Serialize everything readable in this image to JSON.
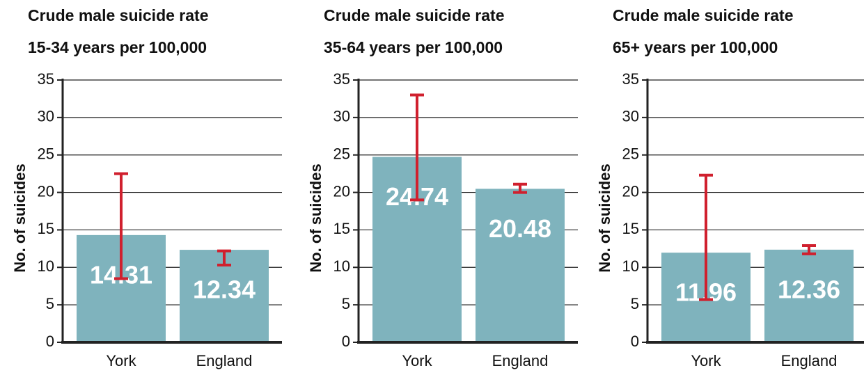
{
  "chart_data": [
    {
      "type": "bar",
      "title": "Crude male suicide rate",
      "subtitle": "15-34 years per 100,000",
      "y_label": "No. of suicides",
      "categories": [
        "York",
        "England"
      ],
      "values": [
        14.31,
        12.34
      ],
      "lower": [
        8.5,
        10.3
      ],
      "upper": [
        22.5,
        12.2
      ],
      "color": "#7fb3bd",
      "error_color": "#d0202e",
      "ylim": [
        0,
        35
      ],
      "yticks": [
        0,
        5,
        10,
        15,
        20,
        25,
        30,
        35
      ],
      "grid": true
    },
    {
      "type": "bar",
      "title": "Crude male suicide rate",
      "subtitle": "35-64 years per 100,000",
      "y_label": "No. of suicides",
      "categories": [
        "York",
        "England"
      ],
      "values": [
        24.74,
        20.48
      ],
      "lower": [
        19,
        20.0
      ],
      "upper": [
        33,
        21.1
      ],
      "color": "#7fb3bd",
      "error_color": "#d0202e",
      "ylim": [
        0,
        35
      ],
      "yticks": [
        0,
        5,
        10,
        15,
        20,
        25,
        30,
        35
      ],
      "grid": true
    },
    {
      "type": "bar",
      "title": "Crude male suicide rate",
      "subtitle": "65+ years per 100,000",
      "y_label": "No. of suicides",
      "categories": [
        "York",
        "England"
      ],
      "values": [
        11.96,
        12.36
      ],
      "lower": [
        5.7,
        11.8
      ],
      "upper": [
        22.3,
        12.9
      ],
      "color": "#7fb3bd",
      "error_color": "#d0202e",
      "ylim": [
        0,
        35
      ],
      "yticks": [
        0,
        5,
        10,
        15,
        20,
        25,
        30,
        35
      ],
      "grid": true
    }
  ]
}
